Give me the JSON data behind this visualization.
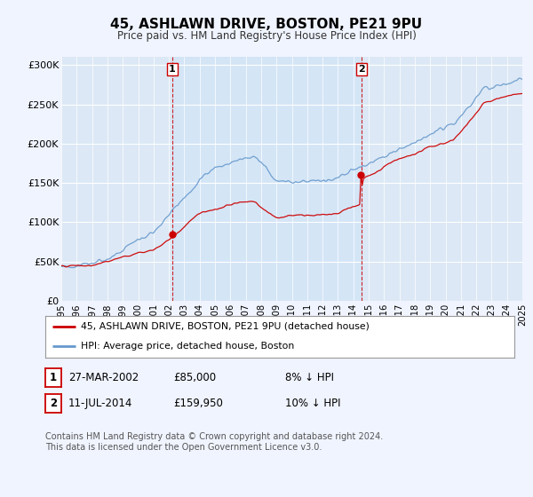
{
  "title": "45, ASHLAWN DRIVE, BOSTON, PE21 9PU",
  "subtitle": "Price paid vs. HM Land Registry's House Price Index (HPI)",
  "bg_color": "#f0f4ff",
  "plot_bg_color": "#dce8f5",
  "shaded_region_color": "#d0e4f7",
  "ylim": [
    0,
    310000
  ],
  "yticks": [
    0,
    50000,
    100000,
    150000,
    200000,
    250000,
    300000
  ],
  "ytick_labels": [
    "£0",
    "£50K",
    "£100K",
    "£150K",
    "£200K",
    "£250K",
    "£300K"
  ],
  "sale1_date_num": 2002.22,
  "sale1_price": 85000,
  "sale1_label": "1",
  "sale2_date_num": 2014.53,
  "sale2_price": 159950,
  "sale2_label": "2",
  "red_line_color": "#cc0000",
  "blue_line_color": "#6699cc",
  "legend_entry1": "45, ASHLAWN DRIVE, BOSTON, PE21 9PU (detached house)",
  "legend_entry2": "HPI: Average price, detached house, Boston",
  "table_row1": [
    "1",
    "27-MAR-2002",
    "£85,000",
    "8% ↓ HPI"
  ],
  "table_row2": [
    "2",
    "11-JUL-2014",
    "£159,950",
    "10% ↓ HPI"
  ],
  "footnote": "Contains HM Land Registry data © Crown copyright and database right 2024.\nThis data is licensed under the Open Government Licence v3.0.",
  "xstart": 1995,
  "xend": 2025
}
